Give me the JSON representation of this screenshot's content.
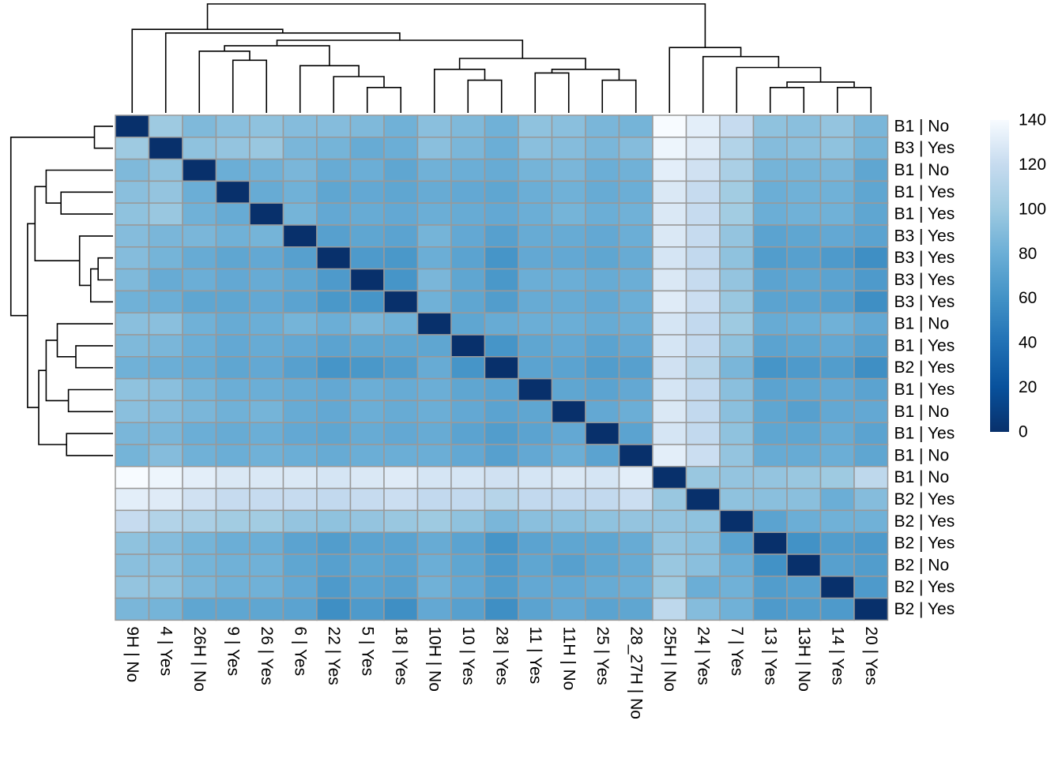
{
  "chart_data": {
    "type": "heatmap",
    "title": "",
    "cluster_rows": true,
    "cluster_cols": true,
    "legend_position": "right",
    "colorscale": {
      "min": 0,
      "max": 140,
      "ticks": [
        "0",
        "20",
        "40",
        "60",
        "80",
        "100",
        "120",
        "140"
      ],
      "stops": [
        {
          "value": 0,
          "color": "#08306b"
        },
        {
          "value": 20,
          "color": "#08519c"
        },
        {
          "value": 40,
          "color": "#2171b5"
        },
        {
          "value": 60,
          "color": "#4292c6"
        },
        {
          "value": 80,
          "color": "#6baed6"
        },
        {
          "value": 100,
          "color": "#9ecae1"
        },
        {
          "value": 120,
          "color": "#c6dbef"
        },
        {
          "value": 140,
          "color": "#f7fbff"
        }
      ]
    },
    "row_labels": [
      "B1 | No",
      "B3 | Yes",
      "B1 | No",
      "B1 | Yes",
      "B1 | Yes",
      "B3 | Yes",
      "B3 | Yes",
      "B3 | Yes",
      "B3 | Yes",
      "B1 | No",
      "B1 | Yes",
      "B2 | Yes",
      "B1 | Yes",
      "B1 | No",
      "B1 | Yes",
      "B1 | No",
      "B1 | No",
      "B2 | Yes",
      "B2 | Yes",
      "B2 | Yes",
      "B2 | No",
      "B2 | Yes",
      "B2 | Yes"
    ],
    "col_labels": [
      "9H | No",
      "4 | Yes",
      "26H | No",
      "9 | Yes",
      "26 | Yes",
      "6 | Yes",
      "22 | Yes",
      "5 | Yes",
      "18 | Yes",
      "10H | No",
      "10 | Yes",
      "28 | Yes",
      "11 | Yes",
      "11H | No",
      "25 | Yes",
      "28_27H | No",
      "25H | No",
      "24 | Yes",
      "7 | Yes",
      "13 | Yes",
      "13H | No",
      "14 | Yes",
      "20 | Yes"
    ],
    "values": [
      [
        0,
        100,
        88,
        92,
        94,
        90,
        90,
        88,
        82,
        92,
        88,
        82,
        94,
        92,
        86,
        84,
        140,
        132,
        120,
        94,
        92,
        96,
        86
      ],
      [
        100,
        0,
        94,
        96,
        98,
        86,
        84,
        78,
        80,
        92,
        86,
        80,
        92,
        90,
        86,
        90,
        136,
        130,
        110,
        90,
        92,
        94,
        84
      ],
      [
        88,
        94,
        0,
        80,
        82,
        86,
        78,
        80,
        74,
        82,
        80,
        78,
        84,
        86,
        80,
        82,
        132,
        124,
        106,
        84,
        84,
        86,
        74
      ],
      [
        92,
        96,
        80,
        0,
        78,
        82,
        74,
        76,
        74,
        78,
        76,
        74,
        80,
        82,
        78,
        80,
        128,
        120,
        102,
        80,
        82,
        82,
        74
      ],
      [
        94,
        98,
        82,
        78,
        0,
        84,
        76,
        78,
        76,
        80,
        78,
        76,
        80,
        84,
        80,
        82,
        128,
        120,
        102,
        80,
        82,
        82,
        74
      ],
      [
        90,
        86,
        86,
        82,
        84,
        0,
        70,
        74,
        72,
        84,
        76,
        70,
        78,
        78,
        76,
        80,
        128,
        120,
        96,
        72,
        74,
        76,
        72
      ],
      [
        90,
        84,
        78,
        74,
        76,
        70,
        0,
        66,
        64,
        80,
        72,
        62,
        76,
        76,
        74,
        78,
        126,
        118,
        94,
        68,
        70,
        66,
        58
      ],
      [
        88,
        78,
        80,
        76,
        78,
        74,
        66,
        0,
        62,
        86,
        74,
        64,
        80,
        80,
        78,
        80,
        128,
        120,
        96,
        72,
        74,
        72,
        66
      ],
      [
        82,
        80,
        74,
        74,
        76,
        72,
        64,
        62,
        0,
        82,
        74,
        68,
        78,
        78,
        76,
        80,
        130,
        122,
        98,
        72,
        72,
        70,
        58
      ],
      [
        92,
        92,
        82,
        78,
        80,
        84,
        80,
        86,
        82,
        0,
        74,
        78,
        80,
        80,
        78,
        80,
        126,
        118,
        100,
        78,
        80,
        82,
        76
      ],
      [
        88,
        86,
        80,
        76,
        78,
        76,
        72,
        74,
        74,
        74,
        0,
        62,
        74,
        76,
        72,
        76,
        126,
        118,
        94,
        72,
        74,
        76,
        70
      ],
      [
        82,
        80,
        78,
        74,
        76,
        70,
        62,
        64,
        68,
        78,
        62,
        0,
        72,
        72,
        68,
        70,
        124,
        112,
        86,
        62,
        66,
        68,
        58
      ],
      [
        94,
        92,
        84,
        80,
        80,
        78,
        76,
        80,
        78,
        80,
        74,
        72,
        0,
        74,
        72,
        76,
        126,
        118,
        92,
        72,
        74,
        76,
        72
      ],
      [
        92,
        90,
        86,
        82,
        84,
        78,
        76,
        80,
        78,
        80,
        76,
        72,
        74,
        0,
        76,
        80,
        128,
        118,
        92,
        74,
        70,
        76,
        76
      ],
      [
        86,
        86,
        80,
        78,
        80,
        76,
        74,
        78,
        76,
        78,
        72,
        68,
        72,
        76,
        0,
        72,
        126,
        118,
        94,
        74,
        74,
        78,
        72
      ],
      [
        84,
        90,
        82,
        80,
        82,
        80,
        78,
        80,
        80,
        80,
        76,
        70,
        76,
        80,
        72,
        0,
        132,
        122,
        96,
        78,
        78,
        80,
        74
      ],
      [
        140,
        136,
        132,
        128,
        128,
        128,
        126,
        128,
        130,
        126,
        126,
        124,
        126,
        128,
        126,
        132,
        0,
        98,
        96,
        96,
        98,
        100,
        116
      ],
      [
        132,
        130,
        124,
        120,
        120,
        120,
        118,
        120,
        122,
        118,
        118,
        112,
        118,
        118,
        118,
        122,
        98,
        0,
        94,
        92,
        92,
        80,
        90
      ],
      [
        120,
        110,
        106,
        102,
        102,
        96,
        94,
        96,
        98,
        100,
        94,
        86,
        92,
        92,
        94,
        96,
        96,
        94,
        0,
        72,
        80,
        82,
        82
      ],
      [
        94,
        90,
        84,
        80,
        80,
        72,
        68,
        72,
        72,
        78,
        72,
        62,
        72,
        74,
        74,
        78,
        96,
        92,
        72,
        0,
        60,
        68,
        66
      ],
      [
        92,
        92,
        84,
        82,
        82,
        74,
        70,
        74,
        72,
        80,
        74,
        66,
        74,
        70,
        74,
        78,
        98,
        92,
        80,
        60,
        0,
        70,
        68
      ],
      [
        96,
        94,
        86,
        82,
        82,
        76,
        66,
        72,
        70,
        82,
        76,
        68,
        76,
        76,
        78,
        80,
        100,
        80,
        82,
        68,
        70,
        0,
        66
      ],
      [
        86,
        84,
        74,
        74,
        74,
        72,
        58,
        66,
        58,
        76,
        70,
        58,
        72,
        76,
        72,
        74,
        116,
        90,
        82,
        66,
        68,
        66,
        0
      ]
    ]
  }
}
